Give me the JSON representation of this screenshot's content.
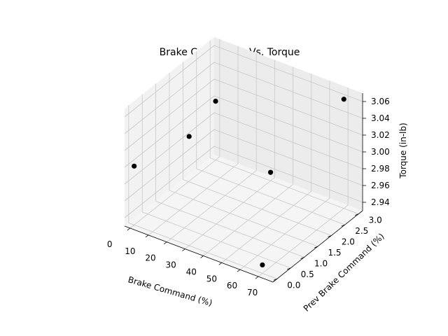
{
  "chart_data": {
    "type": "scatter",
    "title": "Brake Commands Vs. Torque",
    "xlabel": "Brake Command (%)",
    "ylabel": "Prev Brake Command (%)",
    "zlabel": "Torque (in-lb)",
    "x_ticks": [
      "0",
      "10",
      "20",
      "30",
      "40",
      "50",
      "60",
      "70"
    ],
    "y_ticks": [
      "0.0",
      "0.5",
      "1.0",
      "1.5",
      "2.0",
      "2.5",
      "3.0"
    ],
    "z_ticks": [
      "2.94",
      "2.96",
      "2.98",
      "3.00",
      "3.02",
      "3.04",
      "3.06"
    ],
    "xlim": [
      -3,
      78
    ],
    "ylim": [
      -0.15,
      3.15
    ],
    "zlim": [
      2.93,
      3.07
    ],
    "grid": true,
    "marker_color": "#000000",
    "points": [
      {
        "x": 0,
        "y": 0,
        "z": 3.0
      },
      {
        "x": 30,
        "y": 0,
        "z": 3.06
      },
      {
        "x": 70,
        "y": 0,
        "z": 2.94
      },
      {
        "x": 30,
        "y": 3,
        "z": 2.94
      },
      {
        "x": 70,
        "y": 3,
        "z": 3.06
      },
      {
        "x": 0,
        "y": 3,
        "z": 3.0
      }
    ]
  }
}
